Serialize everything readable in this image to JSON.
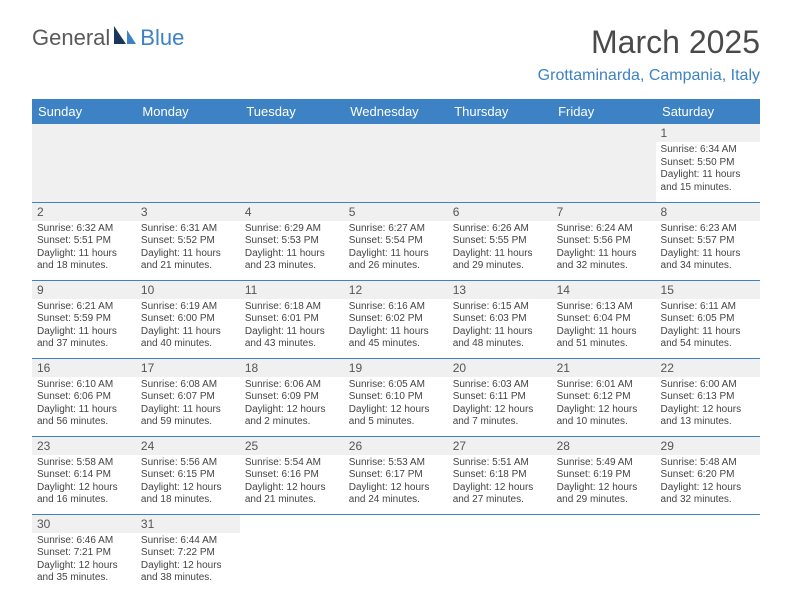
{
  "brand": {
    "part1": "General",
    "part2": "Blue"
  },
  "title": "March 2025",
  "location": "Grottaminarda, Campania, Italy",
  "colors": {
    "header_bg": "#3d82c4",
    "header_fg": "#ffffff",
    "daybar_bg": "#f0f0f0",
    "text": "#444444",
    "accent": "#3d82c4",
    "logo_text": "#5a5a5a"
  },
  "weekdays": [
    "Sunday",
    "Monday",
    "Tuesday",
    "Wednesday",
    "Thursday",
    "Friday",
    "Saturday"
  ],
  "weeks": [
    [
      null,
      null,
      null,
      null,
      null,
      null,
      {
        "n": "1",
        "sr": "6:34 AM",
        "ss": "5:50 PM",
        "dh": "11",
        "dm": "15"
      }
    ],
    [
      {
        "n": "2",
        "sr": "6:32 AM",
        "ss": "5:51 PM",
        "dh": "11",
        "dm": "18"
      },
      {
        "n": "3",
        "sr": "6:31 AM",
        "ss": "5:52 PM",
        "dh": "11",
        "dm": "21"
      },
      {
        "n": "4",
        "sr": "6:29 AM",
        "ss": "5:53 PM",
        "dh": "11",
        "dm": "23"
      },
      {
        "n": "5",
        "sr": "6:27 AM",
        "ss": "5:54 PM",
        "dh": "11",
        "dm": "26"
      },
      {
        "n": "6",
        "sr": "6:26 AM",
        "ss": "5:55 PM",
        "dh": "11",
        "dm": "29"
      },
      {
        "n": "7",
        "sr": "6:24 AM",
        "ss": "5:56 PM",
        "dh": "11",
        "dm": "32"
      },
      {
        "n": "8",
        "sr": "6:23 AM",
        "ss": "5:57 PM",
        "dh": "11",
        "dm": "34"
      }
    ],
    [
      {
        "n": "9",
        "sr": "6:21 AM",
        "ss": "5:59 PM",
        "dh": "11",
        "dm": "37"
      },
      {
        "n": "10",
        "sr": "6:19 AM",
        "ss": "6:00 PM",
        "dh": "11",
        "dm": "40"
      },
      {
        "n": "11",
        "sr": "6:18 AM",
        "ss": "6:01 PM",
        "dh": "11",
        "dm": "43"
      },
      {
        "n": "12",
        "sr": "6:16 AM",
        "ss": "6:02 PM",
        "dh": "11",
        "dm": "45"
      },
      {
        "n": "13",
        "sr": "6:15 AM",
        "ss": "6:03 PM",
        "dh": "11",
        "dm": "48"
      },
      {
        "n": "14",
        "sr": "6:13 AM",
        "ss": "6:04 PM",
        "dh": "11",
        "dm": "51"
      },
      {
        "n": "15",
        "sr": "6:11 AM",
        "ss": "6:05 PM",
        "dh": "11",
        "dm": "54"
      }
    ],
    [
      {
        "n": "16",
        "sr": "6:10 AM",
        "ss": "6:06 PM",
        "dh": "11",
        "dm": "56"
      },
      {
        "n": "17",
        "sr": "6:08 AM",
        "ss": "6:07 PM",
        "dh": "11",
        "dm": "59"
      },
      {
        "n": "18",
        "sr": "6:06 AM",
        "ss": "6:09 PM",
        "dh": "12",
        "dm": "2"
      },
      {
        "n": "19",
        "sr": "6:05 AM",
        "ss": "6:10 PM",
        "dh": "12",
        "dm": "5"
      },
      {
        "n": "20",
        "sr": "6:03 AM",
        "ss": "6:11 PM",
        "dh": "12",
        "dm": "7"
      },
      {
        "n": "21",
        "sr": "6:01 AM",
        "ss": "6:12 PM",
        "dh": "12",
        "dm": "10"
      },
      {
        "n": "22",
        "sr": "6:00 AM",
        "ss": "6:13 PM",
        "dh": "12",
        "dm": "13"
      }
    ],
    [
      {
        "n": "23",
        "sr": "5:58 AM",
        "ss": "6:14 PM",
        "dh": "12",
        "dm": "16"
      },
      {
        "n": "24",
        "sr": "5:56 AM",
        "ss": "6:15 PM",
        "dh": "12",
        "dm": "18"
      },
      {
        "n": "25",
        "sr": "5:54 AM",
        "ss": "6:16 PM",
        "dh": "12",
        "dm": "21"
      },
      {
        "n": "26",
        "sr": "5:53 AM",
        "ss": "6:17 PM",
        "dh": "12",
        "dm": "24"
      },
      {
        "n": "27",
        "sr": "5:51 AM",
        "ss": "6:18 PM",
        "dh": "12",
        "dm": "27"
      },
      {
        "n": "28",
        "sr": "5:49 AM",
        "ss": "6:19 PM",
        "dh": "12",
        "dm": "29"
      },
      {
        "n": "29",
        "sr": "5:48 AM",
        "ss": "6:20 PM",
        "dh": "12",
        "dm": "32"
      }
    ],
    [
      {
        "n": "30",
        "sr": "6:46 AM",
        "ss": "7:21 PM",
        "dh": "12",
        "dm": "35"
      },
      {
        "n": "31",
        "sr": "6:44 AM",
        "ss": "7:22 PM",
        "dh": "12",
        "dm": "38"
      },
      null,
      null,
      null,
      null,
      null
    ]
  ],
  "labels": {
    "sunrise": "Sunrise:",
    "sunset": "Sunset:",
    "daylight": "Daylight:",
    "hours": "hours",
    "and": "and",
    "minutes": "minutes."
  }
}
